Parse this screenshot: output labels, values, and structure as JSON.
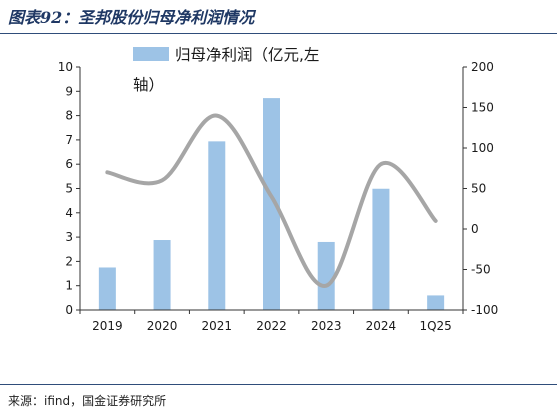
{
  "figure": {
    "title": "图表92：圣邦股份归母净利润情况",
    "source": "来源：ifind，国金证券研究所"
  },
  "chart_data": {
    "type": "bar",
    "categories": [
      "2019",
      "2020",
      "2021",
      "2022",
      "2023",
      "2024",
      "1Q25"
    ],
    "series": [
      {
        "name": "归母净利润（亿元,左轴）",
        "legend_lines": [
          "归母净利润（亿元,左",
          "轴）"
        ],
        "type": "bar",
        "axis": "left",
        "color": "#9dc3e6",
        "values": [
          1.75,
          2.88,
          6.94,
          8.72,
          2.8,
          4.99,
          0.6
        ]
      },
      {
        "name": "",
        "type": "line",
        "axis": "right",
        "color": "#a6a6a6",
        "values": [
          70,
          60,
          140,
          40,
          -70,
          80,
          10
        ]
      }
    ],
    "y_left": {
      "ylim": [
        0,
        10
      ],
      "ticks": [
        "0",
        "1",
        "2",
        "3",
        "4",
        "5",
        "6",
        "7",
        "8",
        "9",
        "10"
      ]
    },
    "y_right": {
      "ylim": [
        -100,
        200
      ],
      "ticks": [
        "-100",
        "-50",
        "0",
        "50",
        "100",
        "150",
        "200"
      ]
    },
    "grid": false,
    "legend": "top-left"
  }
}
